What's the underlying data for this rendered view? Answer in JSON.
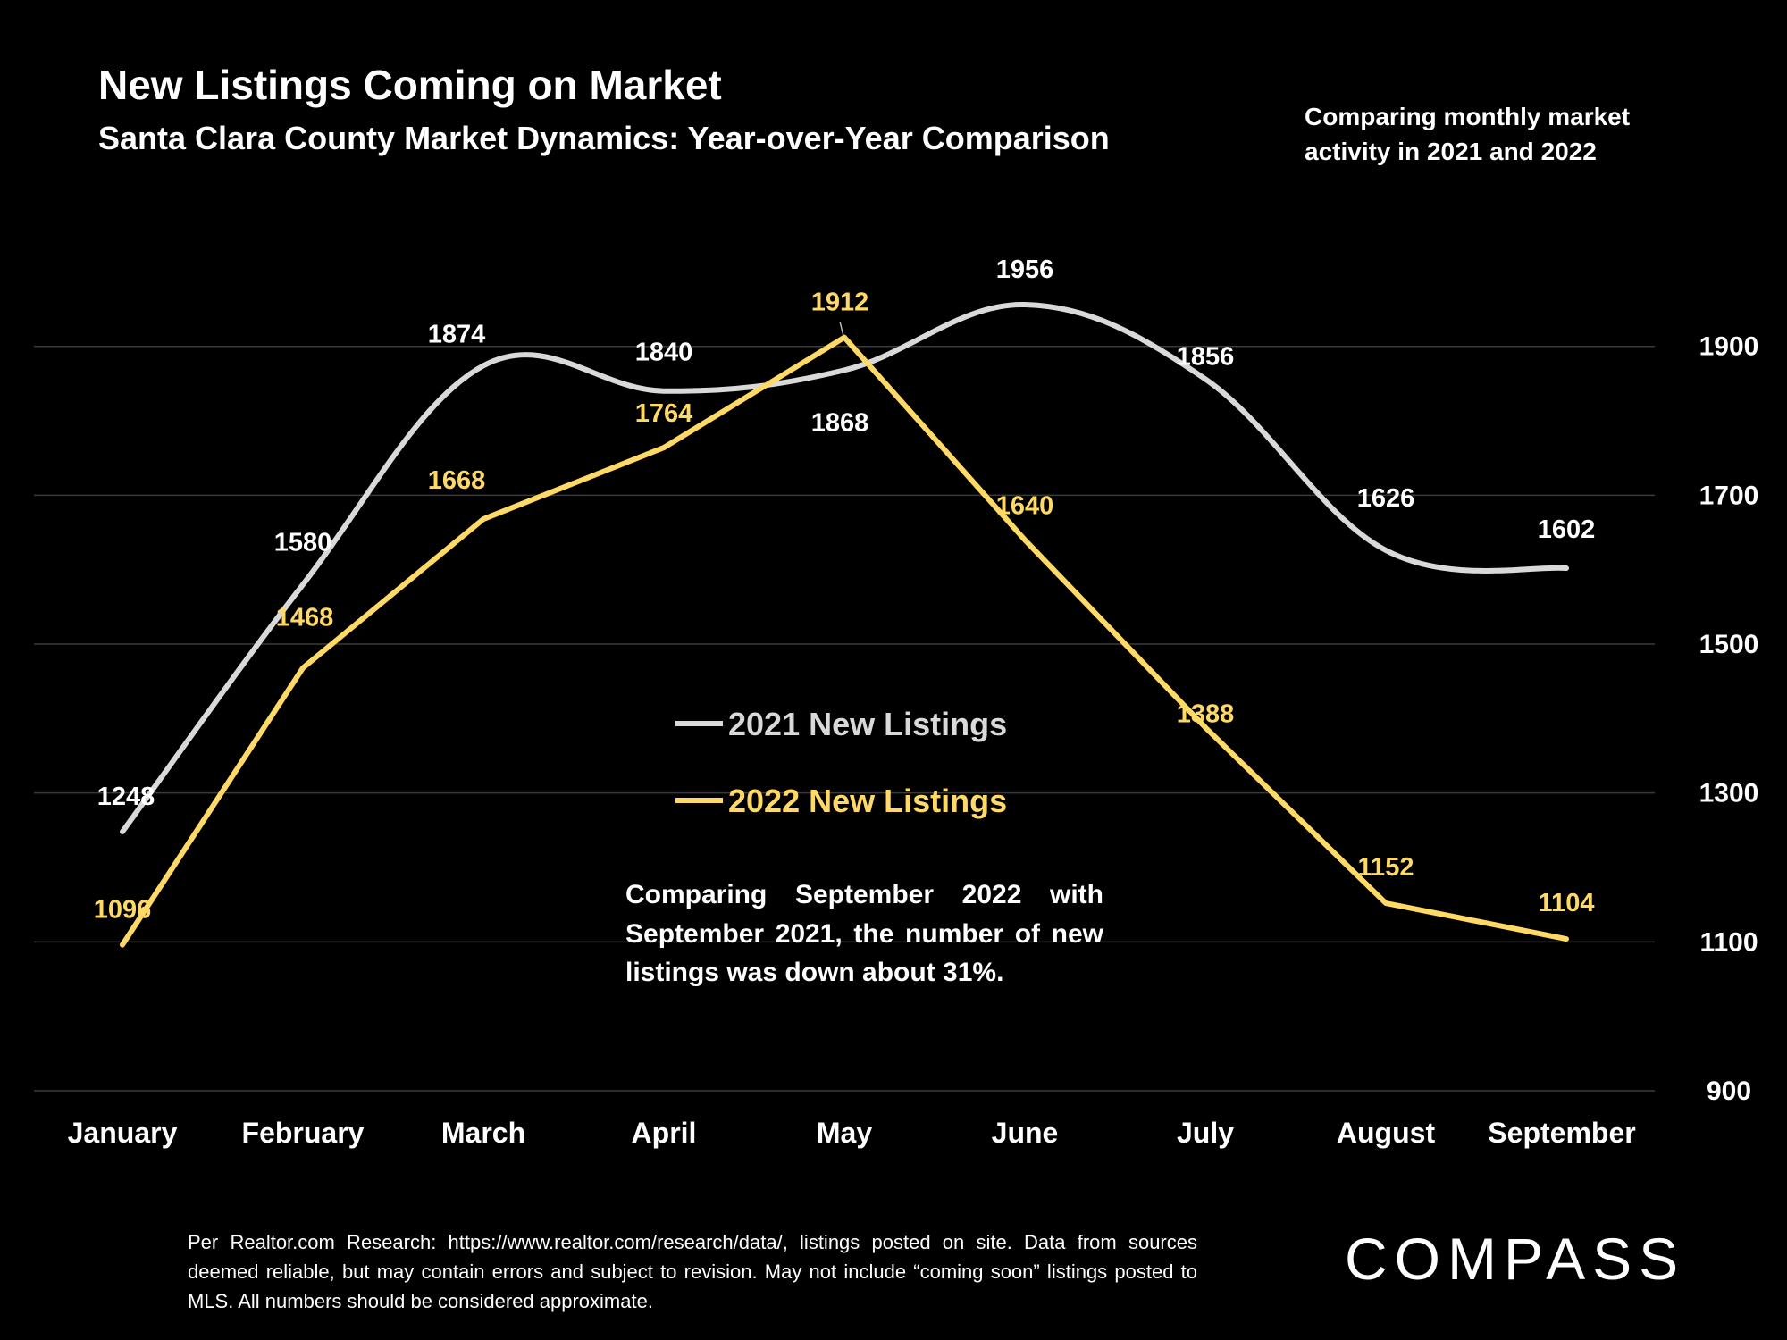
{
  "header": {
    "title": "New Listings Coming on Market",
    "subtitle": "Santa Clara County Market Dynamics: Year-over-Year Comparison",
    "side_note": "Comparing monthly market activity in 2021 and 2022"
  },
  "annotation": "Comparing September 2022 with September 2021, the number of new listings was down about 31%.",
  "footnote": "Per Realtor.com Research: https://www.realtor.com/research/data/, listings posted on site. Data from sources deemed reliable, but may contain errors and subject to revision. May not include “coming soon” listings posted to MLS. All numbers should be considered approximate.",
  "brand": {
    "logo_text": "COMPASS"
  },
  "chart_data": {
    "type": "line",
    "categories": [
      "January",
      "February",
      "March",
      "April",
      "May",
      "June",
      "July",
      "August",
      "September"
    ],
    "y_ticks": [
      900,
      1100,
      1300,
      1500,
      1700,
      1900
    ],
    "ylim": [
      900,
      2000
    ],
    "y_axis_side": "right",
    "grid": true,
    "legend_placement": "center",
    "series": [
      {
        "name": "2021 New Listings",
        "color": "#d9d9d9",
        "smooth": true,
        "values": [
          1248,
          1580,
          1874,
          1840,
          1868,
          1956,
          1856,
          1626,
          1602
        ]
      },
      {
        "name": "2022 New Listings",
        "color": "#ffd966",
        "smooth": false,
        "values": [
          1096,
          1468,
          1668,
          1764,
          1912,
          1640,
          1388,
          1152,
          1104
        ]
      }
    ]
  }
}
